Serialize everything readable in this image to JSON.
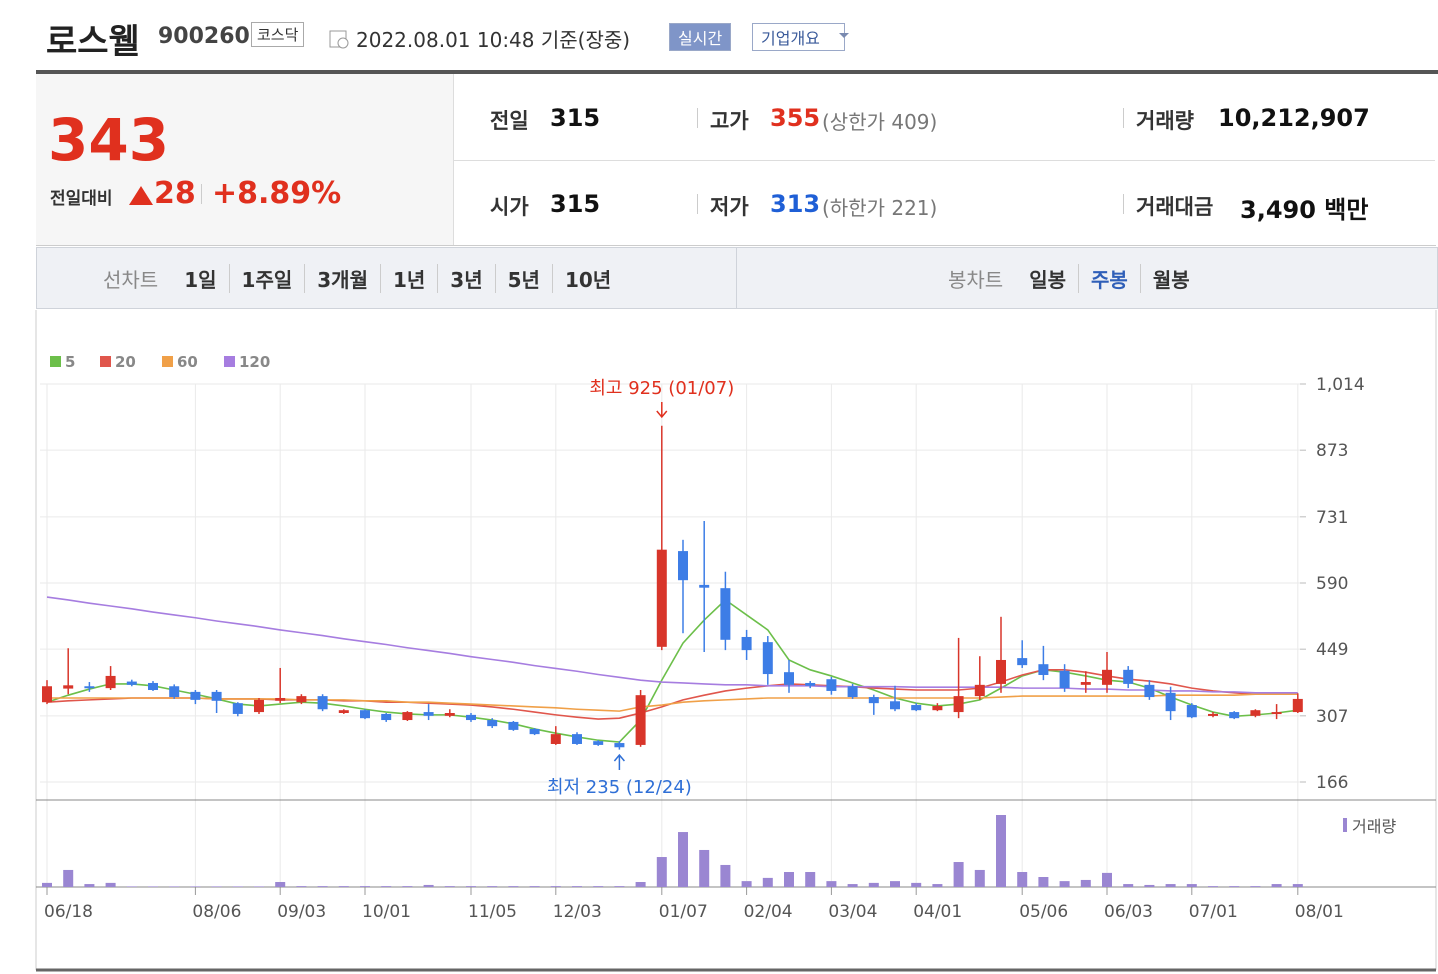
{
  "header": {
    "name": "로스웰",
    "code": "900260",
    "market": "코스닥",
    "timestamp": "2022.08.01 10:48 기준(장중)",
    "realtime_button": "실시간",
    "company_button": "기업개요"
  },
  "quote": {
    "price": 343,
    "change_label": "전일대비",
    "change": 28,
    "change_rate": "+8.89%",
    "rows": [
      [
        {
          "label": "전일",
          "value": 315
        },
        {
          "label": "고가",
          "value": 355,
          "note": "(상한가 409)",
          "color": "#e0301e"
        },
        {
          "label": "거래량",
          "value": "10,212,907"
        }
      ],
      [
        {
          "label": "시가",
          "value": 315
        },
        {
          "label": "저가",
          "value": 313,
          "note": "(하한가 221)",
          "color": "#1f5fd6"
        },
        {
          "label": "거래대금",
          "value": "3,490 백만"
        }
      ]
    ]
  },
  "tabs": {
    "line_label": "선차트",
    "line_options": [
      "1일",
      "1주일",
      "3개월",
      "1년",
      "3년",
      "5년",
      "10년"
    ],
    "candle_label": "봉차트",
    "candle_options": [
      "일봉",
      "주봉",
      "월봉"
    ],
    "active_candle": 1
  },
  "chart_data": {
    "type": "candlestick",
    "categories": [
      "06/18",
      null,
      null,
      null,
      null,
      null,
      null,
      "08/06",
      null,
      null,
      null,
      "09/03",
      null,
      null,
      null,
      "10/01",
      null,
      null,
      null,
      null,
      "11/05",
      null,
      null,
      null,
      "12/03",
      null,
      null,
      null,
      null,
      "01/07",
      null,
      null,
      null,
      "02/04",
      null,
      null,
      null,
      "03/04",
      null,
      null,
      null,
      "04/01",
      null,
      null,
      null,
      null,
      "05/06",
      null,
      null,
      null,
      "06/03",
      null,
      null,
      null,
      "07/01",
      null,
      null,
      null,
      null,
      "08/01"
    ],
    "open": [
      336,
      365,
      370,
      366,
      380,
      377,
      370,
      358,
      358,
      334,
      315,
      339,
      336,
      349,
      313,
      319,
      311,
      298,
      315,
      307,
      309,
      298,
      294,
      279,
      247,
      268,
      253,
      249,
      245,
      454,
      658,
      586,
      579,
      475,
      464,
      400,
      377,
      385,
      370,
      347,
      338,
      330,
      319,
      315,
      349,
      375,
      430,
      417,
      403,
      373,
      373,
      405,
      373,
      356,
      330,
      309,
      315,
      307,
      311,
      315
    ],
    "high": [
      383,
      451,
      379,
      413,
      384,
      381,
      374,
      362,
      362,
      336,
      345,
      409,
      353,
      353,
      321,
      321,
      313,
      317,
      332,
      321,
      313,
      302,
      296,
      281,
      285,
      272,
      255,
      253,
      362,
      925,
      682,
      722,
      614,
      490,
      477,
      426,
      381,
      390,
      375,
      352,
      371,
      334,
      334,
      473,
      434,
      518,
      468,
      456,
      417,
      402,
      443,
      413,
      383,
      369,
      334,
      315,
      317,
      321,
      332,
      355
    ],
    "low": [
      332,
      353,
      358,
      362,
      370,
      360,
      343,
      332,
      313,
      306,
      311,
      334,
      332,
      317,
      311,
      300,
      294,
      296,
      298,
      304,
      294,
      281,
      275,
      266,
      245,
      245,
      243,
      235,
      241,
      447,
      483,
      443,
      447,
      426,
      373,
      356,
      366,
      352,
      343,
      309,
      317,
      317,
      317,
      302,
      341,
      356,
      409,
      383,
      358,
      356,
      356,
      366,
      341,
      298,
      302,
      304,
      300,
      304,
      300,
      313
    ],
    "close": [
      370,
      372,
      366,
      392,
      373,
      362,
      347,
      341,
      339,
      311,
      341,
      345,
      349,
      321,
      319,
      302,
      298,
      315,
      307,
      313,
      298,
      285,
      277,
      268,
      268,
      247,
      245,
      240,
      351,
      661,
      596,
      580,
      469,
      447,
      396,
      373,
      371,
      360,
      347,
      334,
      321,
      319,
      328,
      349,
      373,
      426,
      415,
      394,
      366,
      379,
      405,
      375,
      347,
      317,
      304,
      311,
      302,
      319,
      315,
      343
    ],
    "volume": [
      14,
      58,
      10,
      14,
      2,
      2,
      2,
      2,
      2,
      2,
      2,
      17,
      3,
      3,
      3,
      3,
      3,
      3,
      7,
      3,
      3,
      3,
      3,
      3,
      3,
      3,
      3,
      3,
      17,
      102,
      187,
      126,
      75,
      20,
      31,
      51,
      51,
      20,
      10,
      14,
      20,
      14,
      10,
      85,
      58,
      245,
      51,
      34,
      20,
      24,
      48,
      10,
      7,
      10,
      10,
      3,
      3,
      3,
      10,
      10
    ],
    "volume_label": "거래량",
    "volume_color": "#9a86d2",
    "up_color": "#d8352a",
    "down_color": "#3d7de6",
    "ylim": [
      166,
      1014
    ],
    "yticks": [
      166,
      307,
      449,
      590,
      731,
      873,
      {
        "value": 1014,
        "label": "1,014"
      }
    ],
    "grid": true,
    "ma": [
      {
        "name": "5",
        "color": "#6cbf4a",
        "values": [
          336,
          351,
          364,
          375,
          375,
          371,
          362,
          353,
          343,
          332,
          328,
          332,
          336,
          334,
          328,
          321,
          315,
          311,
          309,
          309,
          304,
          298,
          290,
          279,
          270,
          262,
          255,
          251,
          298,
          383,
          462,
          511,
          554,
          522,
          490,
          426,
          405,
          392,
          377,
          362,
          345,
          334,
          328,
          332,
          341,
          366,
          392,
          405,
          400,
          392,
          383,
          379,
          366,
          347,
          330,
          315,
          306,
          309,
          313,
          319
        ]
      },
      {
        "name": "20",
        "color": "#e0564c",
        "values": [
          336,
          339,
          341,
          343,
          345,
          345,
          345,
          345,
          343,
          343,
          343,
          341,
          341,
          341,
          339,
          339,
          336,
          336,
          334,
          332,
          330,
          326,
          321,
          315,
          309,
          304,
          300,
          302,
          313,
          326,
          341,
          351,
          360,
          366,
          371,
          375,
          373,
          371,
          369,
          366,
          364,
          362,
          362,
          362,
          366,
          379,
          394,
          405,
          405,
          400,
          392,
          385,
          381,
          375,
          366,
          360,
          356,
          353,
          353,
          353
        ]
      },
      {
        "name": "60",
        "color": "#f0a048",
        "values": [
          345,
          345,
          345,
          345,
          345,
          345,
          345,
          345,
          343,
          343,
          343,
          343,
          341,
          341,
          341,
          339,
          339,
          336,
          336,
          334,
          332,
          330,
          328,
          326,
          324,
          321,
          319,
          317,
          326,
          330,
          336,
          339,
          341,
          343,
          345,
          345,
          345,
          345,
          345,
          345,
          345,
          345,
          345,
          345,
          345,
          347,
          349,
          349,
          349,
          349,
          349,
          349,
          349,
          351,
          351,
          351,
          351,
          353,
          353,
          353
        ]
      },
      {
        "name": "120",
        "color": "#a67de0",
        "values": [
          560,
          554,
          547,
          541,
          535,
          528,
          522,
          516,
          509,
          503,
          497,
          490,
          484,
          478,
          471,
          465,
          459,
          452,
          446,
          440,
          433,
          427,
          421,
          414,
          408,
          402,
          395,
          389,
          383,
          379,
          377,
          375,
          373,
          373,
          371,
          371,
          371,
          369,
          369,
          369,
          369,
          368,
          368,
          368,
          368,
          368,
          366,
          366,
          366,
          364,
          364,
          362,
          362,
          360,
          360,
          358,
          358,
          356,
          356,
          356
        ]
      }
    ],
    "annotations": {
      "high": "최고 925 (01/07)",
      "low": "최저 235 (12/24)"
    }
  }
}
